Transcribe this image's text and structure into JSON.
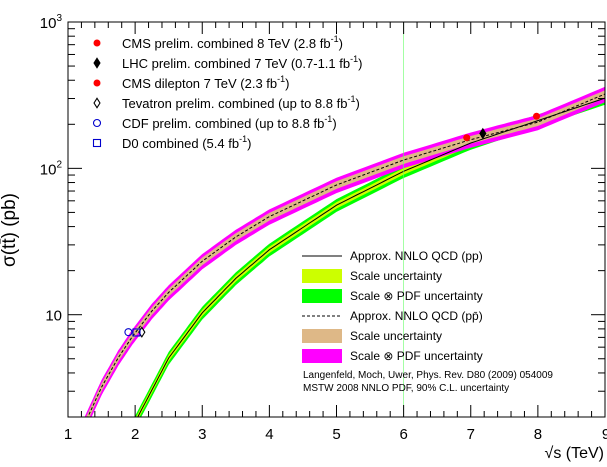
{
  "chart_data": {
    "type": "line",
    "xlabel": "√s (TeV)",
    "ylabel": "σ(tt̄) (pb)",
    "xlim": [
      1,
      9
    ],
    "ylim": [
      2,
      1000
    ],
    "yscale": "log",
    "x_ticks": [
      "1",
      "2",
      "3",
      "4",
      "5",
      "6",
      "7",
      "8",
      "9"
    ],
    "y_ticks": [
      {
        "mantissa": "10",
        "exp": "3",
        "value": 1000
      },
      {
        "mantissa": "10",
        "exp": "2",
        "value": 100
      },
      {
        "mantissa": "10",
        "exp": "",
        "value": 10
      }
    ],
    "grid": false,
    "series": [
      {
        "name": "Approx. NNLO QCD (pp)",
        "x": [
          2.0,
          2.5,
          3.0,
          3.5,
          4.0,
          5.0,
          6.0,
          7.0,
          8.0,
          9.0
        ],
        "y": [
          1.85,
          5.06,
          10.3,
          17.7,
          27.8,
          56.0,
          95.4,
          149,
          212,
          302
        ],
        "scale_uncertainty": {
          "name": "Scale uncertainty",
          "color": "#ccff00",
          "rel_width": 0.05
        },
        "scale_pdf_uncertainty": {
          "name": "Scale ⊗ PDF uncertainty",
          "color": "#00ff00",
          "rel_width": 0.1
        }
      },
      {
        "name": "Approx. NNLO QCD (pp̄)",
        "x": [
          1.25,
          1.5,
          1.75,
          1.96,
          2.25,
          2.5,
          3.0,
          3.5,
          4.0,
          5.0,
          6.0,
          7.0,
          8.0,
          9.0
        ],
        "y": [
          1.8,
          3.2,
          5.1,
          7.1,
          10.6,
          14.2,
          23.2,
          34.0,
          46.8,
          77.0,
          114,
          157,
          207,
          322
        ],
        "scale_uncertainty": {
          "name": "Scale uncertainty",
          "color": "#deb887",
          "rel_width": 0.06
        },
        "scale_pdf_uncertainty": {
          "name": "Scale ⊗ PDF uncertainty",
          "color": "#ff00ff",
          "rel_width": 0.12
        }
      }
    ],
    "measurements": [
      {
        "name": "CMS prelim. combined 8 TeV (2.8 fb",
        "sup": "-1",
        "tail": ")",
        "marker": "circle-filled",
        "color": "#ff0000",
        "x": 7.98,
        "y": 227
      },
      {
        "name": "LHC prelim. combined 7 TeV (0.7-1.1 fb",
        "sup": "-1",
        "tail": ")",
        "marker": "diamond-filled",
        "color": "#000000",
        "x": 7.18,
        "y": 173
      },
      {
        "name": "CMS dilepton 7 TeV (2.3 fb",
        "sup": "-1",
        "tail": ")",
        "marker": "circle-filled",
        "color": "#ff0000",
        "x": 6.94,
        "y": 162
      },
      {
        "name": "Tevatron prelim. combined (up to 8.8 fb",
        "sup": "-1",
        "tail": ")",
        "marker": "diamond-open",
        "color": "#000000",
        "x": 2.1,
        "y": 7.6
      },
      {
        "name": "CDF prelim. combined (up to 8.8 fb",
        "sup": "-1",
        "tail": ")",
        "marker": "circle-open",
        "color": "#0000cc",
        "x": 1.9,
        "y": 7.6
      },
      {
        "name": "D0 combined (5.4 fb",
        "sup": "-1",
        "tail": ")",
        "marker": "square-open",
        "color": "#0000cc",
        "x": 2.02,
        "y": 7.56
      }
    ],
    "theory_legend": [
      {
        "label": "Approx. NNLO QCD (pp)",
        "style": "line-solid"
      },
      {
        "label": "Scale uncertainty",
        "style": "fill",
        "color": "#ccff00"
      },
      {
        "label": "Scale ⊗ PDF uncertainty",
        "style": "fill",
        "color": "#00ff00"
      },
      {
        "label": "Approx. NNLO QCD (pp̄)",
        "style": "line-dashed"
      },
      {
        "label": "Scale uncertainty",
        "style": "fill",
        "color": "#deb887"
      },
      {
        "label": "Scale ⊗ PDF uncertainty",
        "style": "fill",
        "color": "#ff00ff"
      }
    ],
    "legend_placement": [
      "top-left",
      "bottom-right"
    ],
    "annotations": [
      "Langenfeld, Moch, Uwer, Phys. Rev. D80 (2009) 054009",
      "MSTW 2008 NNLO PDF, 90% C.L. uncertainty"
    ]
  }
}
